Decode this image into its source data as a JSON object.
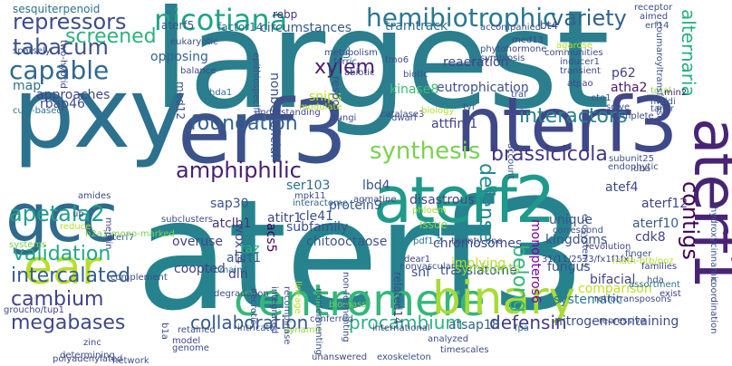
{
  "words": [
    {
      "text": "largest",
      "color": "#2a7e8e"
    },
    {
      "text": "aterf3",
      "color": "#26838e"
    },
    {
      "text": "pxy",
      "color": "#2c718e"
    },
    {
      "text": "erf3",
      "color": "#3b528b"
    },
    {
      "text": "nterf3",
      "color": "#3f4888"
    },
    {
      "text": "gcc",
      "color": "#2f6b8e"
    },
    {
      "text": "aterf2",
      "color": "#1f9a8a"
    },
    {
      "text": "aterf1",
      "color": "#482475"
    },
    {
      "text": "centromere",
      "color": "#35b779"
    },
    {
      "text": "binary",
      "color": "#a8db34"
    },
    {
      "text": "ear",
      "color": "#b8de29"
    },
    {
      "text": "nicotiana",
      "color": "#20a386"
    },
    {
      "text": "hemibiotrophic",
      "color": "#2a788e"
    },
    {
      "text": "capable",
      "color": "#31688e"
    },
    {
      "text": "repressors",
      "color": "#3e4c8a"
    },
    {
      "text": "tabacum",
      "color": "#3b528b"
    },
    {
      "text": "screened",
      "color": "#2db27d"
    },
    {
      "text": "variety",
      "color": "#33638d"
    },
    {
      "text": "alternaria",
      "color": "#27ad81"
    },
    {
      "text": "contigs",
      "color": "#440154"
    },
    {
      "text": "xylem",
      "color": "#482071"
    },
    {
      "text": "interactors",
      "color": "#26828e"
    },
    {
      "text": "foundation",
      "color": "#34618d"
    },
    {
      "text": "synthesis",
      "color": "#7ad151"
    },
    {
      "text": "apetala2",
      "color": "#1fa088"
    },
    {
      "text": "amphiphilic",
      "color": "#481f70"
    },
    {
      "text": "brassicicola",
      "color": "#453882"
    },
    {
      "text": "validation",
      "color": "#22a785"
    },
    {
      "text": "defense",
      "color": "#23898e"
    },
    {
      "text": "belong",
      "color": "#30b47c"
    },
    {
      "text": "intercalated",
      "color": "#365d8d"
    },
    {
      "text": "cambium",
      "color": "#424186"
    },
    {
      "text": "collaboration",
      "color": "#375a8c"
    },
    {
      "text": "procambium",
      "color": "#2cb17e"
    },
    {
      "text": "defensin",
      "color": "#433d84"
    },
    {
      "text": "megabases",
      "color": "#3e4989"
    },
    {
      "text": "eutrophication",
      "color": "#3c508b"
    },
    {
      "text": "sap30",
      "color": "#3b528b"
    },
    {
      "text": "ser103",
      "color": "#2e6f8e"
    },
    {
      "text": "apetala2",
      "color": "#1fa088"
    },
    {
      "text": "atclh1",
      "color": "#46327e"
    },
    {
      "text": "subfamily",
      "color": "#3c4f8a"
    },
    {
      "text": "chitooctaose",
      "color": "#3a548c"
    },
    {
      "text": "protein9",
      "color": "#37598c"
    },
    {
      "text": "issue",
      "color": "#7fd34e"
    },
    {
      "text": "lbd4",
      "color": "#3b518b"
    },
    {
      "text": "attfin-1",
      "color": "#414287"
    },
    {
      "text": "disastrous",
      "color": "#414487"
    },
    {
      "text": "atef4",
      "color": "#3e4a89"
    },
    {
      "text": "aterf12",
      "color": "#414387"
    },
    {
      "text": "aterf10",
      "color": "#375b8d"
    },
    {
      "text": "cdk8",
      "color": "#414487"
    },
    {
      "text": "kingdoms",
      "color": "#3a538b"
    },
    {
      "text": "unique",
      "color": "#3b528b"
    },
    {
      "text": "chromosomes",
      "color": "#3e4989"
    },
    {
      "text": "implying",
      "color": "#b5de2b"
    },
    {
      "text": "monopteros6",
      "color": "#7e03a8"
    },
    {
      "text": "fungus",
      "color": "#3a548c"
    },
    {
      "text": "bifacial",
      "color": "#404588"
    },
    {
      "text": "comparison",
      "color": "#c0df25"
    },
    {
      "text": "systematic",
      "color": "#2a788e"
    },
    {
      "text": "translatome",
      "color": "#3c4f8a"
    },
    {
      "text": "snf",
      "color": "#3a548c"
    },
    {
      "text": "nitrogen-containing",
      "color": "#3e4c8a"
    },
    {
      "text": "atsap18",
      "color": "#34608d"
    },
    {
      "text": "symbionts",
      "color": "#90d743"
    },
    {
      "text": "overuse",
      "color": "#414487"
    },
    {
      "text": "coopted",
      "color": "#424086"
    },
    {
      "text": "atirt1",
      "color": "#365c8d"
    },
    {
      "text": "dln",
      "color": "#433e85"
    },
    {
      "text": "wox14",
      "color": "#3f4889"
    },
    {
      "text": "acs5",
      "color": "#440154"
    },
    {
      "text": "taz",
      "color": "#29af7f"
    },
    {
      "text": "cle41",
      "color": "#3b518b"
    },
    {
      "text": "atitr1",
      "color": "#404588"
    },
    {
      "text": "foundation",
      "color": "#34618d"
    },
    {
      "text": "kinase8",
      "color": "#3ebc73"
    },
    {
      "text": "reaeration",
      "color": "#414487"
    },
    {
      "text": "opposing",
      "color": "#33638d"
    },
    {
      "text": "approaches",
      "color": "#3f4788"
    },
    {
      "text": "rbap46",
      "color": "#3e4c8a"
    },
    {
      "text": "map",
      "color": "#2c728e"
    },
    {
      "text": "sesquiterpenoid",
      "color": "#2c728e"
    },
    {
      "text": "aterf5",
      "color": "#3a548c"
    },
    {
      "text": "factor14",
      "color": "#2d708e"
    },
    {
      "text": "circumstances",
      "color": "#38598c"
    },
    {
      "text": "tramtrack",
      "color": "#2e6e8e"
    },
    {
      "text": "bt4",
      "color": "#3e4a89"
    },
    {
      "text": "rebp",
      "color": "#46307e"
    },
    {
      "text": "p62",
      "color": "#424086"
    },
    {
      "text": "atha2",
      "color": "#4a1c6e"
    },
    {
      "text": "eto1",
      "color": "#375b8d"
    },
    {
      "text": "med12",
      "color": "#3e4c8a"
    },
    {
      "text": "nonbeneficial",
      "color": "#3b528b"
    },
    {
      "text": "snips",
      "color": "#bddf26"
    },
    {
      "text": "en",
      "color": "#2a788e"
    },
    {
      "text": "respond",
      "color": "#3c4f8a"
    },
    {
      "text": "understanding",
      "color": "#3f4788"
    },
    {
      "text": "hda1",
      "color": "#2d708e"
    },
    {
      "text": "cul3-based",
      "color": "#2c728e"
    },
    {
      "text": "catalase3",
      "color": "#3e4989"
    },
    {
      "text": "endophytic",
      "color": "#3b518b"
    },
    {
      "text": "subunit25",
      "color": "#3b528b"
    },
    {
      "text": "uba",
      "color": "#3f4889"
    },
    {
      "text": "solve",
      "color": "#3c4f8a"
    },
    {
      "text": "complete",
      "color": "#3e4a89"
    },
    {
      "text": "total",
      "color": "#8fd744"
    },
    {
      "text": "maldi",
      "color": "#35608d"
    },
    {
      "text": "tailor",
      "color": "#3b518b"
    },
    {
      "text": "min2",
      "color": "#482475"
    },
    {
      "text": "amides",
      "color": "#3e4a89"
    },
    {
      "text": "mpk11",
      "color": "#3c4f8a"
    },
    {
      "text": "interactome",
      "color": "#33628d"
    },
    {
      "text": "agmatine",
      "color": "#3e4a89"
    },
    {
      "text": "phloem",
      "color": "#a5db36"
    },
    {
      "text": "revolution",
      "color": "#414387"
    },
    {
      "text": "31/11/2573/fx1f1fx1",
      "color": "#414387"
    },
    {
      "text": "math-btb/poz",
      "color": "#b5de2b"
    },
    {
      "text": "finger",
      "color": "#3b518b"
    },
    {
      "text": "twenty-one",
      "color": "#3c4f8a"
    },
    {
      "text": "pdf1.2",
      "color": "#2e6f8e"
    },
    {
      "text": "dear1",
      "color": "#424086"
    },
    {
      "text": "nonvascular",
      "color": "#3c4f8a"
    },
    {
      "text": "international",
      "color": "#3f4788"
    },
    {
      "text": "conferred",
      "color": "#3b528b"
    },
    {
      "text": "dynamic",
      "color": "#8fd744"
    },
    {
      "text": "analyzed",
      "color": "#3e4a89"
    },
    {
      "text": "families",
      "color": "#414487"
    },
    {
      "text": "hda",
      "color": "#3a548c"
    },
    {
      "text": "assortment",
      "color": "#2d708e"
    },
    {
      "text": "exist",
      "color": "#414387"
    },
    {
      "text": "retrotransposons",
      "color": "#3e4c8a"
    },
    {
      "text": "repressive",
      "color": "#3b528b"
    },
    {
      "text": "fpa",
      "color": "#2e6e8e"
    },
    {
      "text": "timescales",
      "color": "#3e4989"
    },
    {
      "text": "unanswered",
      "color": "#3f4788"
    },
    {
      "text": "exoskeleton",
      "color": "#3c4f8a"
    },
    {
      "text": "network",
      "color": "#3b528b"
    },
    {
      "text": "polyadenylated",
      "color": "#3e4989"
    },
    {
      "text": "zinc",
      "color": "#3f4889"
    },
    {
      "text": "groucho/tup1",
      "color": "#3f4889"
    },
    {
      "text": "systems",
      "color": "#7ad151"
    },
    {
      "text": "determining",
      "color": "#3b528b"
    },
    {
      "text": "retained",
      "color": "#3c4f8a"
    },
    {
      "text": "complement",
      "color": "#3e4a89"
    },
    {
      "text": "aterf7",
      "color": "#3b528b"
    },
    {
      "text": "model",
      "color": "#414387"
    },
    {
      "text": "genome",
      "color": "#3e4989"
    },
    {
      "text": "domain4",
      "color": "#2c728e"
    },
    {
      "text": "intricate",
      "color": "#3a548c"
    },
    {
      "text": "nonfermenting",
      "color": "#3b518b"
    },
    {
      "text": "subclusters",
      "color": "#3f4889"
    },
    {
      "text": "reduce",
      "color": "#b5de2b"
    },
    {
      "text": "ub",
      "color": "#3b528b"
    },
    {
      "text": "h2a1-mono-marked",
      "color": "#7ad151"
    },
    {
      "text": "degradation",
      "color": "#3c4f8a"
    },
    {
      "text": "meprin",
      "color": "#3e4989"
    },
    {
      "text": "accompanied",
      "color": "#3b528b"
    },
    {
      "text": "phytohormone",
      "color": "#3e4a89"
    },
    {
      "text": "symbiosis",
      "color": "#3c4f8a"
    },
    {
      "text": "biotic",
      "color": "#3b528b"
    },
    {
      "text": "transient",
      "color": "#3e4989"
    },
    {
      "text": "tyr",
      "color": "#3b528b"
    },
    {
      "text": "med13",
      "color": "#3e4a89"
    },
    {
      "text": "coumaroyltransferase",
      "color": "#3b518b"
    },
    {
      "text": "communities",
      "color": "#3e4989"
    },
    {
      "text": "inducer1",
      "color": "#3c4f8a"
    },
    {
      "text": "traf",
      "color": "#3b528b"
    },
    {
      "text": "atpao",
      "color": "#3e4a89"
    },
    {
      "text": "agarose",
      "color": "#b5de2b"
    },
    {
      "text": "receptor",
      "color": "#3c4f8a"
    },
    {
      "text": "aimed",
      "color": "#3e4989"
    },
    {
      "text": "erf14",
      "color": "#3b528b"
    },
    {
      "text": "metabolism",
      "color": "#3e4a89"
    },
    {
      "text": "ferric",
      "color": "#3b528b"
    },
    {
      "text": "tmo6",
      "color": "#3c4f8a"
    },
    {
      "text": "abiotic",
      "color": "#3e4989"
    },
    {
      "text": "epithiospecifier",
      "color": "#3b528b"
    },
    {
      "text": "eukaryotic",
      "color": "#3c4f8a"
    },
    {
      "text": "balance",
      "color": "#3e4a89"
    },
    {
      "text": "sparsely",
      "color": "#3b528b"
    },
    {
      "text": "two-hybrid",
      "color": "#3e4989"
    },
    {
      "text": "modulate",
      "color": "#b5de2b"
    },
    {
      "text": "ecosystems",
      "color": "#3c4f8a"
    },
    {
      "text": "hydroxycinnamic",
      "color": "#3b528b"
    },
    {
      "text": "coordination",
      "color": "#3e4989"
    },
    {
      "text": "correspond",
      "color": "#3b528b"
    },
    {
      "text": "dwarf",
      "color": "#3c4f8a"
    },
    {
      "text": "fungi",
      "color": "#3e4a89"
    },
    {
      "text": "biology",
      "color": "#b5de2b"
    },
    {
      "text": "account",
      "color": "#3b528b"
    },
    {
      "text": "necrotic",
      "color": "#3c4f8a"
    },
    {
      "text": "integrated",
      "color": "#3e4989"
    },
    {
      "text": "recombinase",
      "color": "#3b528b"
    },
    {
      "text": "lineage",
      "color": "#b5de2b"
    },
    {
      "text": "biomass",
      "color": "#7ad151"
    },
    {
      "text": "non-fermenting",
      "color": "#3c4f8a"
    },
    {
      "text": "related14",
      "color": "#3e4989"
    },
    {
      "text": "b1a",
      "color": "#3b528b"
    }
  ]
}
